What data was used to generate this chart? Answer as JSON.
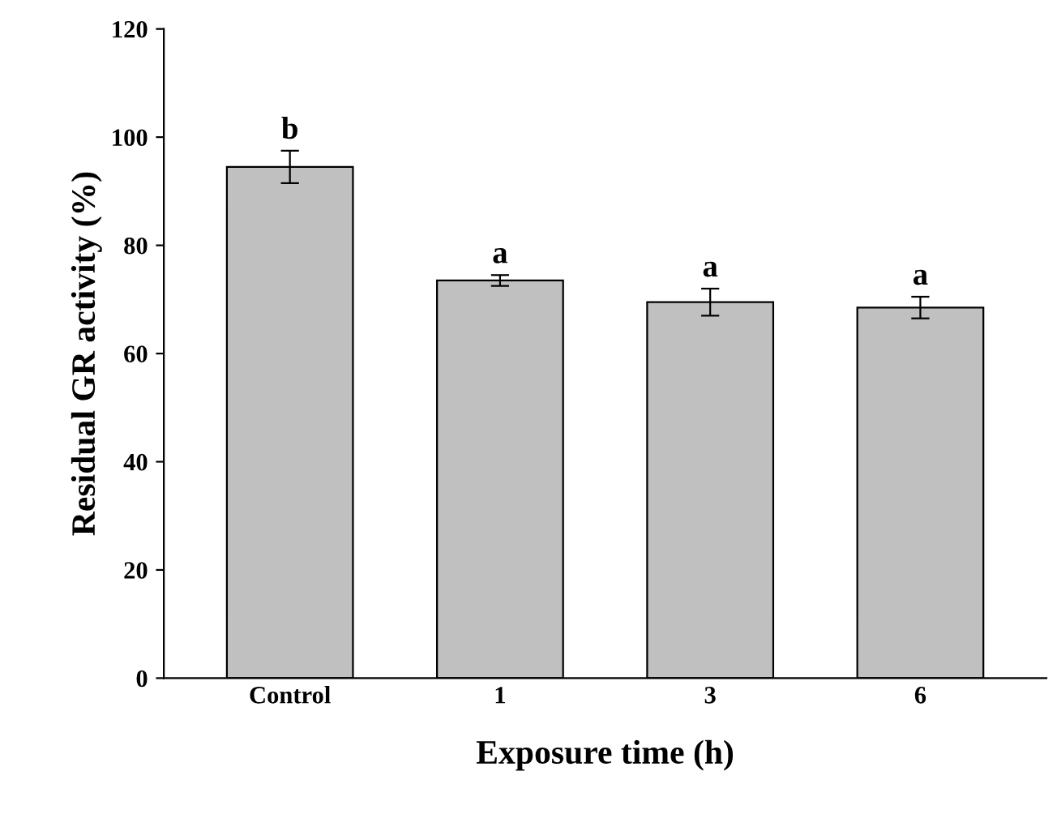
{
  "chart_data": {
    "type": "bar",
    "xlabel": "Exposure time (h)",
    "ylabel": "Residual GR activity (%)",
    "categories": [
      "Control",
      "1",
      "3",
      "6"
    ],
    "values": [
      94.5,
      73.5,
      69.5,
      68.5
    ],
    "errors": [
      3,
      1,
      2.5,
      2
    ],
    "color": "#c0c0c0",
    "ylim": [
      0,
      120
    ],
    "yticks": [
      0,
      20,
      40,
      60,
      80,
      100,
      120
    ],
    "grid": false,
    "legend": false,
    "annotations": [
      {
        "text": "b",
        "x": "Control",
        "y": 98.5
      },
      {
        "text": "a",
        "x": "1",
        "y": 75.5
      },
      {
        "text": "a",
        "x": "3",
        "y": 73
      },
      {
        "text": "a",
        "x": "6",
        "y": 71.5
      }
    ]
  }
}
